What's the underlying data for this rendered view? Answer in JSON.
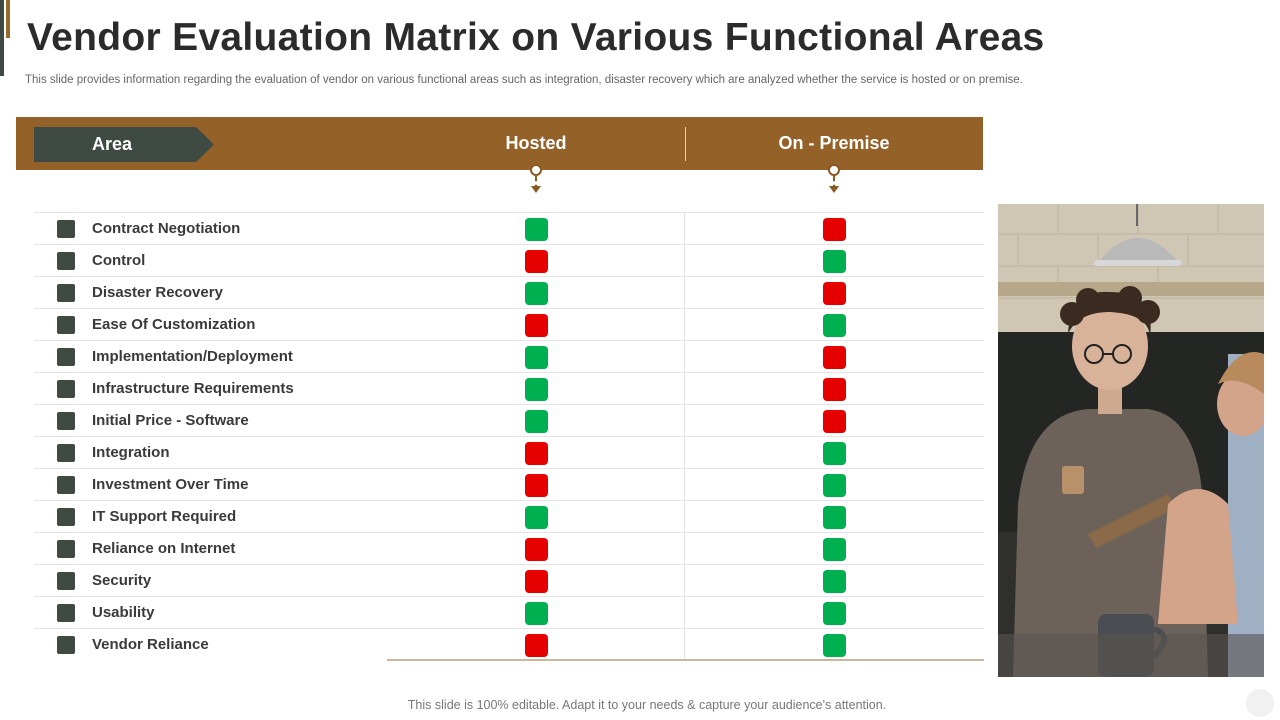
{
  "title": "Vendor Evaluation Matrix on Various Functional Areas",
  "subtitle": "This slide provides information regarding the evaluation of vendor on various functional areas such as integration, disaster recovery which are analyzed whether the service is hosted or on premise.",
  "table": {
    "area_header": "Area",
    "hosted_header": "Hosted",
    "premise_header": "On - Premise",
    "rows": [
      {
        "label": "Contract Negotiation",
        "hosted": "green",
        "premise": "red"
      },
      {
        "label": "Control",
        "hosted": "red",
        "premise": "green"
      },
      {
        "label": "Disaster Recovery",
        "hosted": "green",
        "premise": "red"
      },
      {
        "label": "Ease Of Customization",
        "hosted": "red",
        "premise": "green"
      },
      {
        "label": "Implementation/Deployment",
        "hosted": "green",
        "premise": "red"
      },
      {
        "label": "Infrastructure Requirements",
        "hosted": "green",
        "premise": "red"
      },
      {
        "label": "Initial Price - Software",
        "hosted": "green",
        "premise": "red"
      },
      {
        "label": "Integration",
        "hosted": "red",
        "premise": "green"
      },
      {
        "label": "Investment Over Time",
        "hosted": "red",
        "premise": "green"
      },
      {
        "label": "IT Support Required",
        "hosted": "green",
        "premise": "green"
      },
      {
        "label": "Reliance on Internet",
        "hosted": "red",
        "premise": "green"
      },
      {
        "label": "Security",
        "hosted": "red",
        "premise": "green"
      },
      {
        "label": "Usability",
        "hosted": "green",
        "premise": "green"
      },
      {
        "label": "Vendor Reliance",
        "hosted": "red",
        "premise": "green"
      }
    ]
  },
  "colors": {
    "header_band": "#946128",
    "area_tag": "#3e4a42",
    "positive": "#00b050",
    "negative": "#e60000"
  },
  "footer": "This slide is 100% editable. Adapt it to your needs & capture your audience's attention."
}
